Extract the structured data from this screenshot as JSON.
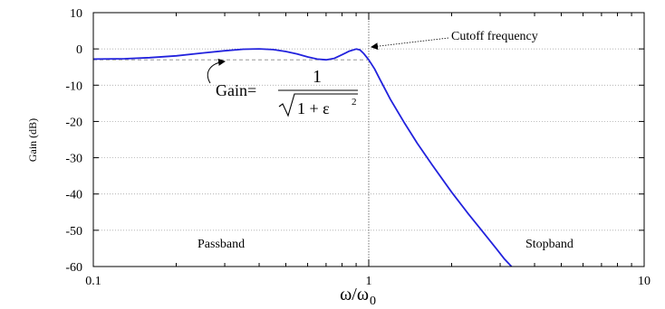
{
  "chart_data": {
    "type": "line",
    "xlabel": "ω/ω",
    "xlabel_sub": "0",
    "ylabel": "Gain (dB)",
    "x_scale": "log",
    "xlim": [
      0.1,
      10
    ],
    "ylim": [
      -60,
      10
    ],
    "grid": true,
    "x_ticks": [
      0.1,
      1,
      10
    ],
    "x_tick_labels": [
      "0.1",
      "1",
      "10"
    ],
    "y_ticks": [
      10,
      0,
      -10,
      -20,
      -30,
      -40,
      -50,
      -60
    ],
    "y_tick_labels": [
      "10",
      "0",
      "-10",
      "-20",
      "-30",
      "-40",
      "-50",
      "-60"
    ],
    "series": [
      {
        "color": "#2222dd",
        "x": [
          0.1,
          0.13,
          0.16,
          0.2,
          0.25,
          0.3,
          0.35,
          0.4,
          0.45,
          0.5,
          0.55,
          0.6,
          0.65,
          0.7,
          0.75,
          0.8,
          0.85,
          0.9,
          0.93,
          0.96,
          1.0,
          1.05,
          1.1,
          1.2,
          1.35,
          1.5,
          1.7,
          2.0,
          2.3,
          2.6,
          2.9,
          3.1,
          3.3
        ],
        "y": [
          -2.8,
          -2.7,
          -2.4,
          -1.9,
          -1.1,
          -0.5,
          -0.1,
          0.0,
          -0.2,
          -0.7,
          -1.4,
          -2.2,
          -2.8,
          -3.0,
          -2.6,
          -1.6,
          -0.6,
          -0.05,
          -0.3,
          -1.3,
          -3.0,
          -5.5,
          -8.5,
          -14.0,
          -20.5,
          -26.0,
          -32.0,
          -39.5,
          -45.5,
          -50.5,
          -55.0,
          -57.8,
          -60.0
        ]
      }
    ],
    "reference_line": {
      "y": -3.0,
      "style": "dashed",
      "color": "#888888"
    },
    "cutoff_line": {
      "x": 1.0,
      "style": "dotted",
      "color": "#666666"
    },
    "annotations": {
      "cutoff_text": "Cutoff frequency",
      "passband_text": "Passband",
      "stopband_text": "Stopband",
      "gain_text": "Gain=",
      "gain_numerator": "1",
      "gain_denominator": "1 + ε",
      "gain_exponent": "2"
    }
  }
}
